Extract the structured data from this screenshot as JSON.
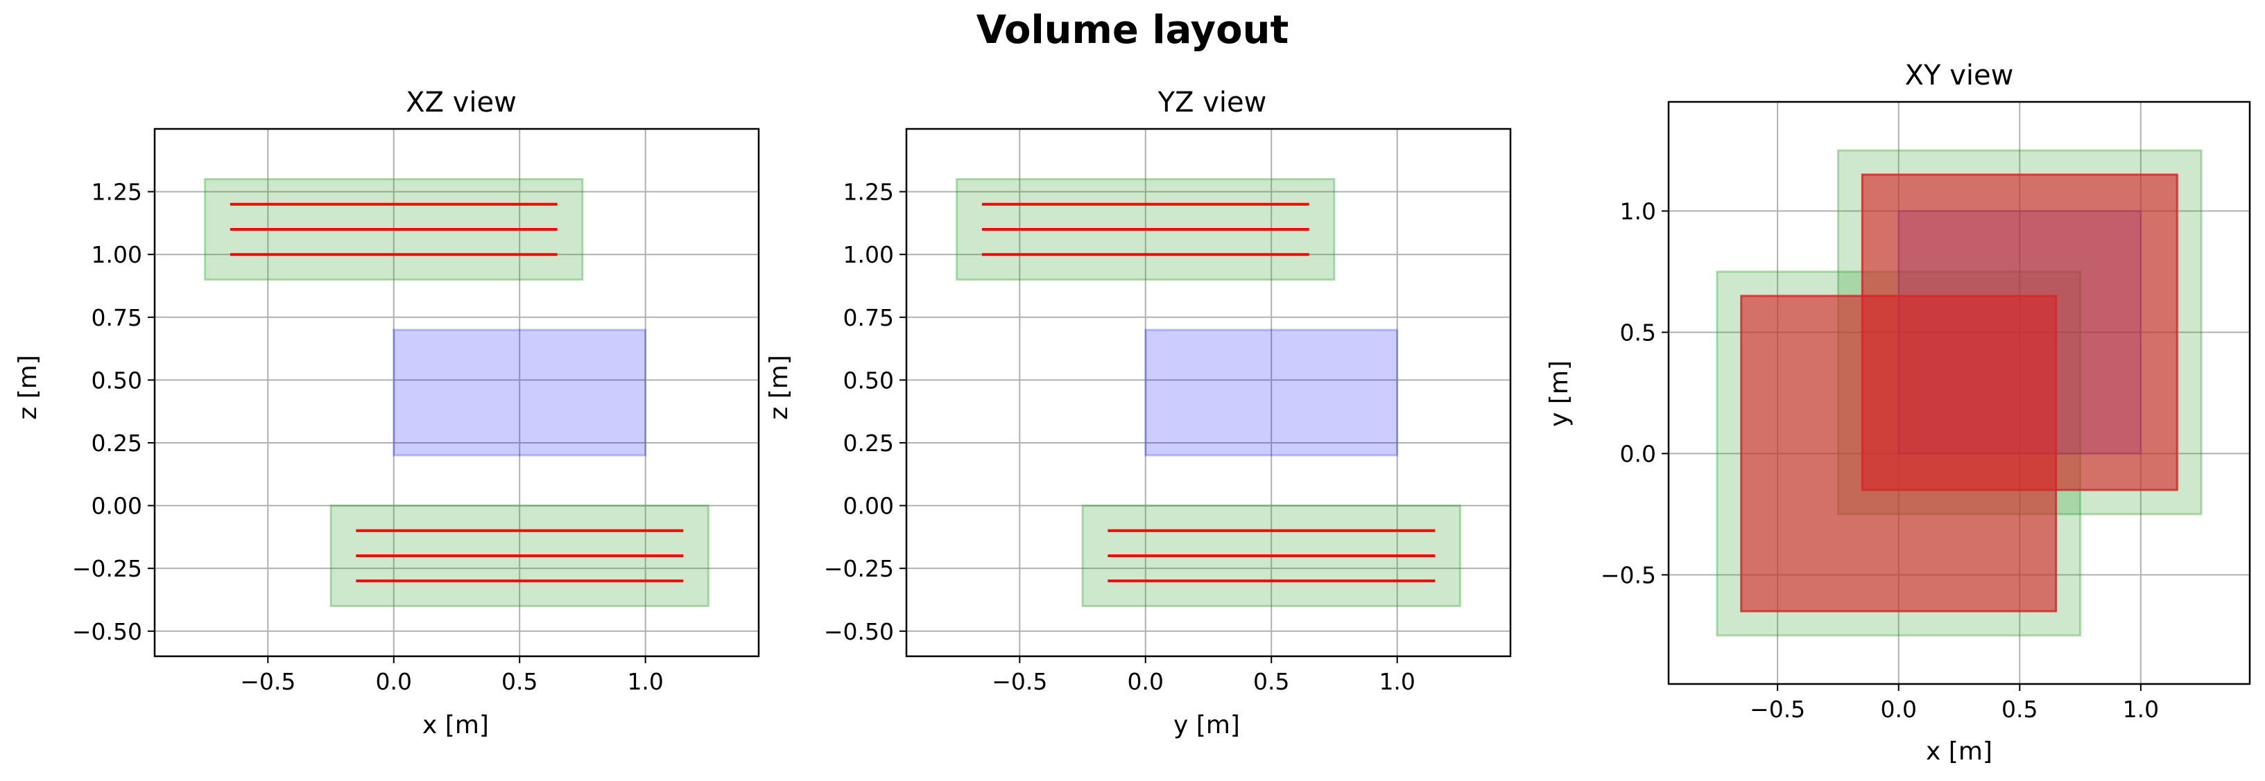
{
  "figure_title": "Volume layout",
  "colors": {
    "grid": "#b0b0b0",
    "green_fill": "#2ca02c",
    "blue_fill": "#0000ff",
    "red_fill": "#d62728",
    "red_line": "#ff0000"
  },
  "chart_data": [
    {
      "type": "other",
      "title": "XZ view",
      "xlabel": "x [m]",
      "ylabel": "z [m]",
      "xlim": [
        -0.95,
        1.45
      ],
      "ylim": [
        -0.6,
        1.5
      ],
      "xticks": [
        -0.5,
        0.0,
        0.5,
        1.0
      ],
      "xtick_labels": [
        "−0.5",
        "0.0",
        "0.5",
        "1.0"
      ],
      "yticks": [
        -0.5,
        -0.25,
        0.0,
        0.25,
        0.5,
        0.75,
        1.0,
        1.25
      ],
      "ytick_labels": [
        "−0.50",
        "−0.25",
        "0.00",
        "0.25",
        "0.50",
        "0.75",
        "1.00",
        "1.25"
      ],
      "grid": true,
      "rects": [
        {
          "x0": -0.75,
          "x1": 0.75,
          "y0": 0.9,
          "y1": 1.3,
          "color": "green"
        },
        {
          "x0": 0.0,
          "x1": 1.0,
          "y0": 0.2,
          "y1": 0.7,
          "color": "blue"
        },
        {
          "x0": -0.25,
          "x1": 1.25,
          "y0": -0.4,
          "y1": 0.0,
          "color": "green"
        }
      ],
      "hlines": [
        {
          "y": 1.2,
          "x0": -0.65,
          "x1": 0.65
        },
        {
          "y": 1.1,
          "x0": -0.65,
          "x1": 0.65
        },
        {
          "y": 1.0,
          "x0": -0.65,
          "x1": 0.65
        },
        {
          "y": -0.1,
          "x0": -0.15,
          "x1": 1.15
        },
        {
          "y": -0.2,
          "x0": -0.15,
          "x1": 1.15
        },
        {
          "y": -0.3,
          "x0": -0.15,
          "x1": 1.15
        }
      ]
    },
    {
      "type": "other",
      "title": "YZ view",
      "xlabel": "y [m]",
      "ylabel": "z [m]",
      "xlim": [
        -0.95,
        1.45
      ],
      "ylim": [
        -0.6,
        1.5
      ],
      "xticks": [
        -0.5,
        0.0,
        0.5,
        1.0
      ],
      "xtick_labels": [
        "−0.5",
        "0.0",
        "0.5",
        "1.0"
      ],
      "yticks": [
        -0.5,
        -0.25,
        0.0,
        0.25,
        0.5,
        0.75,
        1.0,
        1.25
      ],
      "ytick_labels": [
        "−0.50",
        "−0.25",
        "0.00",
        "0.25",
        "0.50",
        "0.75",
        "1.00",
        "1.25"
      ],
      "grid": true,
      "rects": [
        {
          "x0": -0.75,
          "x1": 0.75,
          "y0": 0.9,
          "y1": 1.3,
          "color": "green"
        },
        {
          "x0": 0.0,
          "x1": 1.0,
          "y0": 0.2,
          "y1": 0.7,
          "color": "blue"
        },
        {
          "x0": -0.25,
          "x1": 1.25,
          "y0": -0.4,
          "y1": 0.0,
          "color": "green"
        }
      ],
      "hlines": [
        {
          "y": 1.2,
          "x0": -0.65,
          "x1": 0.65
        },
        {
          "y": 1.1,
          "x0": -0.65,
          "x1": 0.65
        },
        {
          "y": 1.0,
          "x0": -0.65,
          "x1": 0.65
        },
        {
          "y": -0.1,
          "x0": -0.15,
          "x1": 1.15
        },
        {
          "y": -0.2,
          "x0": -0.15,
          "x1": 1.15
        },
        {
          "y": -0.3,
          "x0": -0.15,
          "x1": 1.15
        }
      ]
    },
    {
      "type": "other",
      "title": "XY view",
      "xlabel": "x [m]",
      "ylabel": "y [m]",
      "xlim": [
        -0.95,
        1.45
      ],
      "ylim": [
        -0.95,
        1.45
      ],
      "xticks": [
        -0.5,
        0.0,
        0.5,
        1.0
      ],
      "xtick_labels": [
        "−0.5",
        "0.0",
        "0.5",
        "1.0"
      ],
      "yticks": [
        -0.5,
        0.0,
        0.5,
        1.0
      ],
      "ytick_labels": [
        "−0.5",
        "0.0",
        "0.5",
        "1.0"
      ],
      "grid": true,
      "rects": [
        {
          "x0": -0.25,
          "x1": 1.25,
          "y0": -0.25,
          "y1": 1.25,
          "color": "green"
        },
        {
          "x0": -0.75,
          "x1": 0.75,
          "y0": -0.75,
          "y1": 0.75,
          "color": "green"
        },
        {
          "x0": 0.0,
          "x1": 1.0,
          "y0": 0.0,
          "y1": 1.0,
          "color": "blue"
        },
        {
          "x0": -0.15,
          "x1": 1.15,
          "y0": -0.15,
          "y1": 1.15,
          "color": "red"
        },
        {
          "x0": -0.65,
          "x1": 0.65,
          "y0": -0.65,
          "y1": 0.65,
          "color": "red"
        }
      ],
      "hlines": []
    }
  ]
}
